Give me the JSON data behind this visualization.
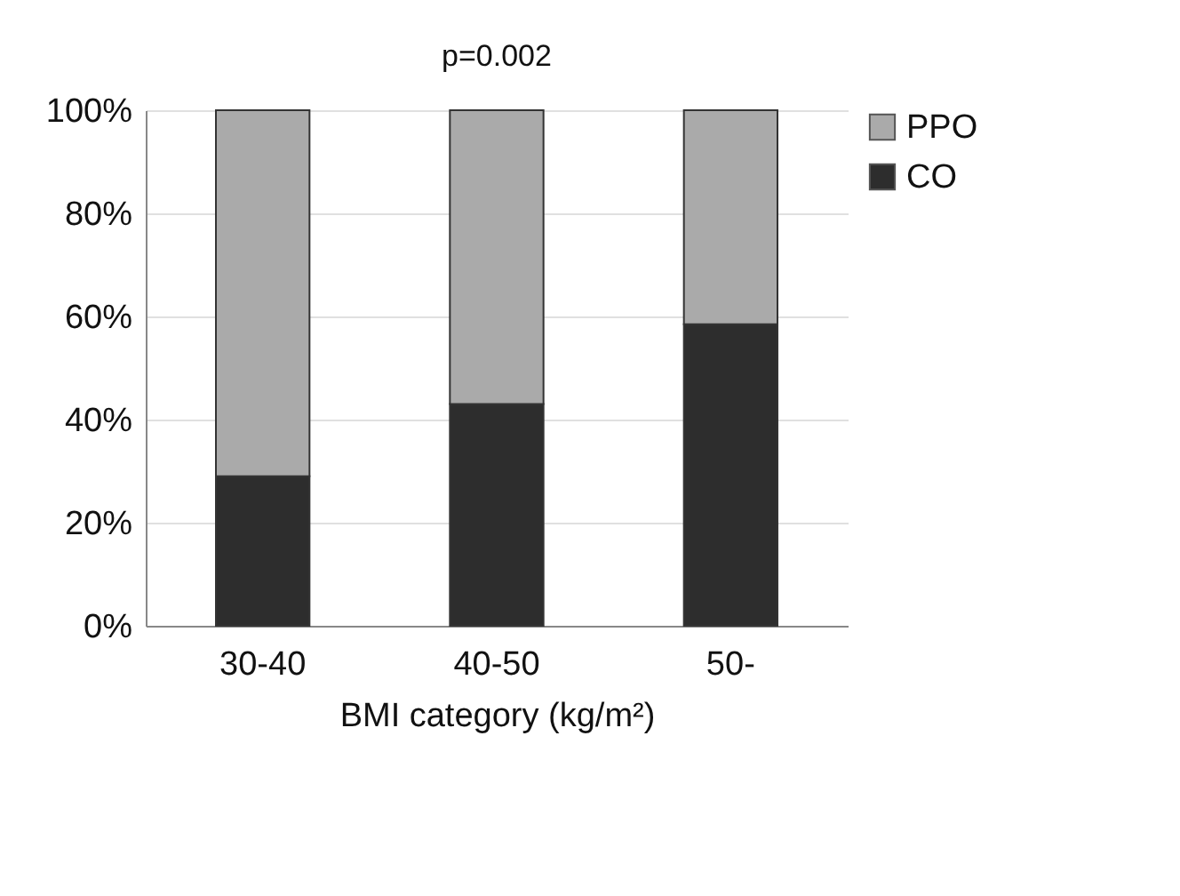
{
  "chart_data": {
    "type": "bar",
    "title": "p=0.002",
    "xlabel": "BMI category (kg/m²)",
    "categories": [
      "30-40",
      "40-50",
      "50-"
    ],
    "series": [
      {
        "name": "CO",
        "color": "#2d2d2d",
        "values": [
          29,
          43,
          58.5
        ]
      },
      {
        "name": "PPO",
        "color": "#aaaaaa",
        "values": [
          71,
          57,
          41.5
        ]
      }
    ],
    "stacked": true,
    "ylim": [
      0,
      100
    ],
    "yticks": [
      {
        "value": 0,
        "label": "0%"
      },
      {
        "value": 20,
        "label": "20%"
      },
      {
        "value": 40,
        "label": "40%"
      },
      {
        "value": 60,
        "label": "60%"
      },
      {
        "value": 80,
        "label": "80%"
      },
      {
        "value": 100,
        "label": "100%"
      }
    ],
    "grid": "y",
    "legend": "right"
  }
}
